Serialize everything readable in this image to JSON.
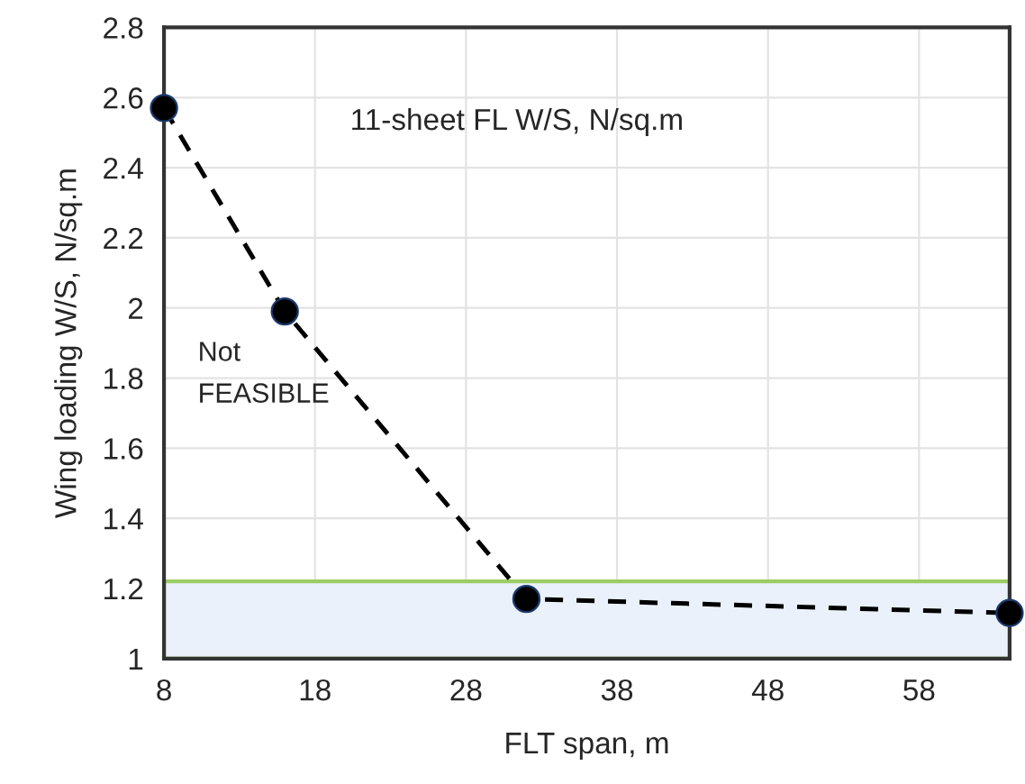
{
  "chart_data": {
    "type": "line",
    "xlabel": "FLT span, m",
    "ylabel": "Wing loading W/S, N/sq.m",
    "x": [
      8,
      16,
      32,
      64
    ],
    "series": [
      {
        "color": "#000000",
        "values": [
          2.57,
          1.99,
          1.17,
          1.13
        ]
      }
    ],
    "marker": "circle",
    "line_style": "dashed",
    "xlim": [
      8,
      64
    ],
    "xticks": [
      8,
      18,
      28,
      38,
      48,
      58
    ],
    "ylim": [
      1,
      2.8
    ],
    "yticks": [
      1,
      1.2,
      1.4,
      1.6,
      1.8,
      2,
      2.2,
      2.4,
      2.6,
      2.8
    ],
    "grid": true,
    "legend": false,
    "bands": [
      {
        "axis": "y",
        "from": 1.0,
        "to": 1.22,
        "color": "#eaf1fa"
      }
    ],
    "annotations": [
      {
        "text": "11-sheet FL W/S, N/sq.m"
      },
      {
        "text": "Not\nFEASIBLE"
      }
    ]
  }
}
